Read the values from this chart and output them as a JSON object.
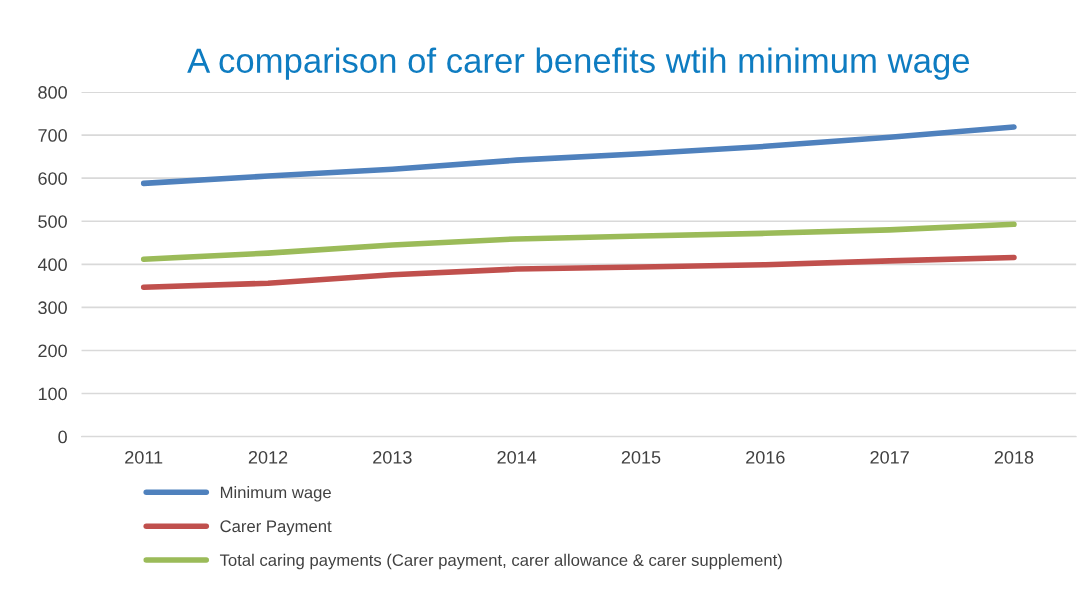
{
  "chart_data": {
    "type": "line",
    "title": "A comparison of carer benefits wtih minimum wage",
    "categories": [
      "2011",
      "2012",
      "2013",
      "2014",
      "2015",
      "2016",
      "2017",
      "2018"
    ],
    "series": [
      {
        "name": "Minimum wage",
        "color": "#4f81bd",
        "values": [
          588,
          605,
          621,
          642,
          657,
          674,
          695,
          719
        ]
      },
      {
        "name": "Carer Payment",
        "color": "#c0504d",
        "values": [
          347,
          356,
          376,
          389,
          394,
          399,
          408,
          416
        ]
      },
      {
        "name": "Total caring payments (Carer payment, carer allowance & carer supplement)",
        "color": "#9bbb59",
        "values": [
          412,
          426,
          445,
          459,
          466,
          472,
          480,
          493
        ]
      }
    ],
    "ylim": [
      0,
      800
    ],
    "yticks": [
      0,
      100,
      200,
      300,
      400,
      500,
      600,
      700,
      800
    ],
    "grid": "y",
    "legend": "bottom",
    "marker": "none",
    "line_style": "solid"
  }
}
